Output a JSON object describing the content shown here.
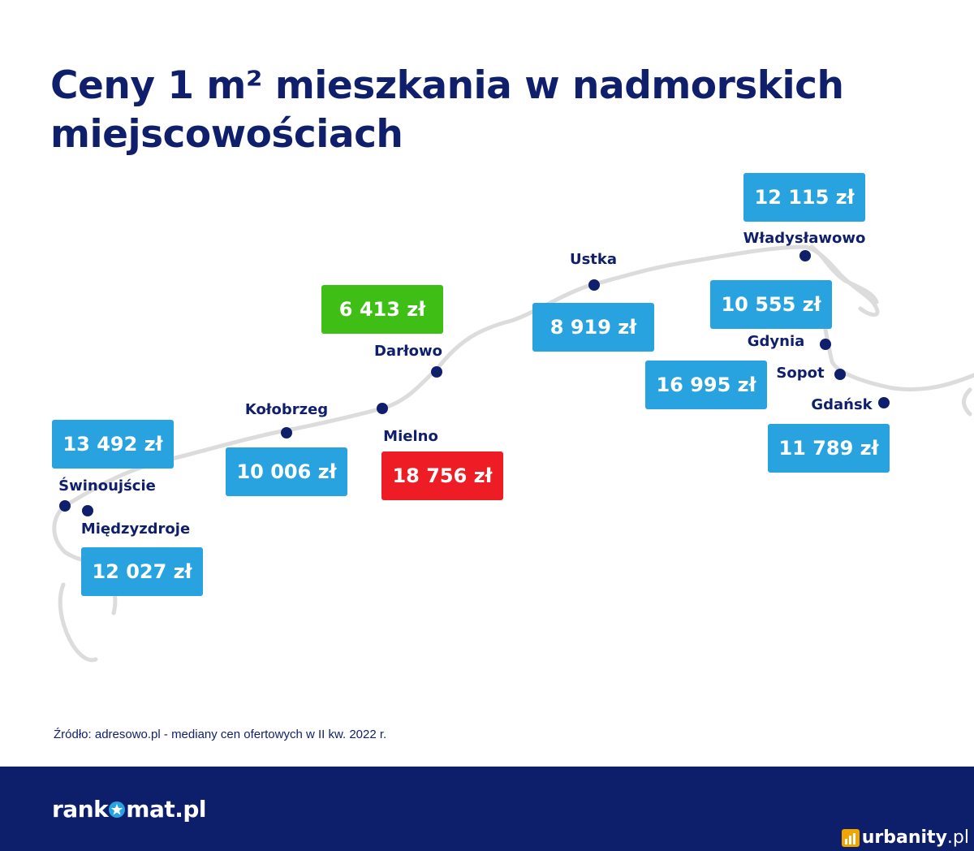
{
  "title": "Ceny 1 m² mieszkania w nadmorskich miejscowościach",
  "cities": [
    {
      "name": "Świnoujście",
      "price": "13 492 zł",
      "color": "#29a3e0"
    },
    {
      "name": "Międzyzdroje",
      "price": "12 027 zł",
      "color": "#29a3e0"
    },
    {
      "name": "Kołobrzeg",
      "price": "10 006 zł",
      "color": "#29a3e0"
    },
    {
      "name": "Mielno",
      "price": "18 756 zł",
      "color": "#ee1c24"
    },
    {
      "name": "Darłowo",
      "price": "6 413 zł",
      "color": "#3fbf16"
    },
    {
      "name": "Ustka",
      "price": "8 919 zł",
      "color": "#29a3e0"
    },
    {
      "name": "Władysławowo",
      "price": "12 115 zł",
      "color": "#29a3e0"
    },
    {
      "name": "Gdynia",
      "price": "10 555 zł",
      "color": "#29a3e0"
    },
    {
      "name": "Sopot",
      "price": "16 995 zł",
      "color": "#29a3e0"
    },
    {
      "name": "Gdańsk",
      "price": "11 789 zł",
      "color": "#29a3e0"
    }
  ],
  "source": "Źródło: adresowo.pl - mediany cen ofertowych w II kw. 2022 r.",
  "footer": {
    "logo_left": "rank",
    "logo_right": "mat.pl",
    "watermark_main": "urbanity",
    "watermark_suffix": ".pl"
  },
  "colors": {
    "navy": "#0f1f6b",
    "footer": "#0d1f6b",
    "blue": "#29a3e0",
    "green": "#3fbf16",
    "red": "#ee1c24",
    "coast": "#d9d9d9"
  },
  "icons": [
    "star-icon",
    "urbanity-logo-icon"
  ]
}
